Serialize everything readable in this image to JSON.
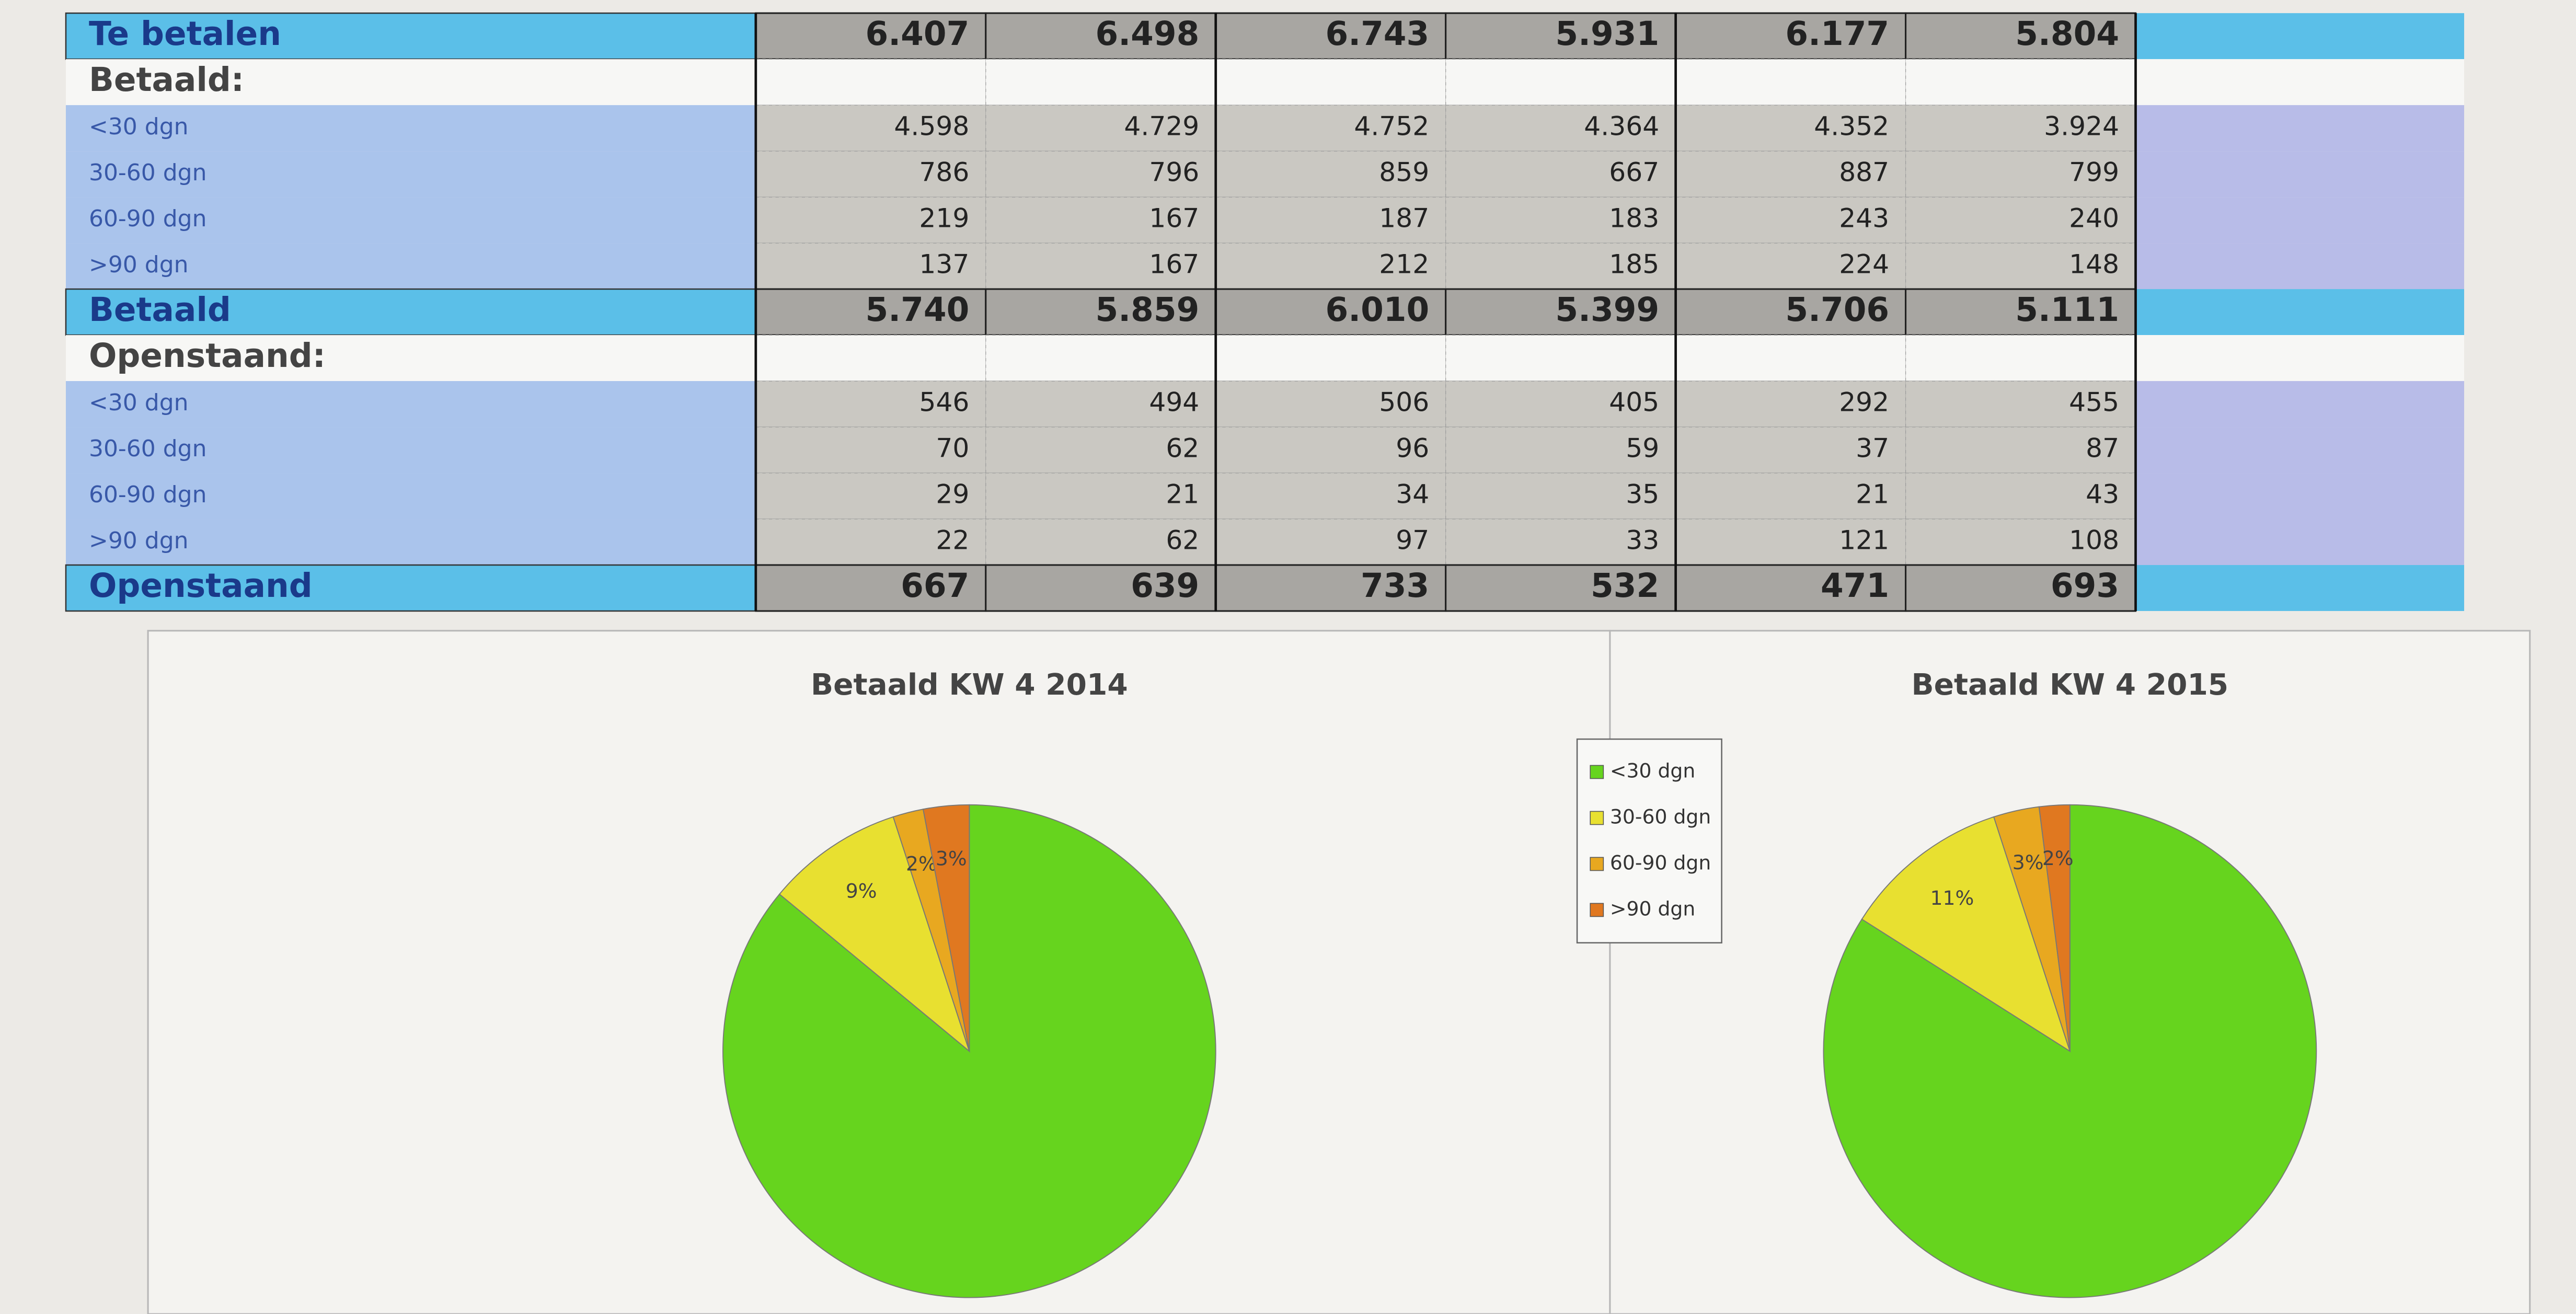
{
  "table": {
    "rows": [
      {
        "label": "Te betalen",
        "total": true,
        "values": [
          "6.407",
          "6.498",
          "6.743",
          "5.931",
          "6.177",
          "5.804"
        ]
      },
      {
        "label": "Betaald:"
      },
      {
        "label": "<30 dgn",
        "values": [
          "4.598",
          "4.729",
          "4.752",
          "4.364",
          "4.352",
          "3.924"
        ]
      },
      {
        "label": "30-60 dgn",
        "values": [
          "786",
          "796",
          "859",
          "667",
          "887",
          "799"
        ]
      },
      {
        "label": "60-90 dgn",
        "values": [
          "219",
          "167",
          "187",
          "183",
          "243",
          "240"
        ]
      },
      {
        "label": ">90 dgn",
        "values": [
          "137",
          "167",
          "212",
          "185",
          "224",
          "148"
        ]
      },
      {
        "label": "Betaald",
        "total": true,
        "values": [
          "5.740",
          "5.859",
          "6.010",
          "5.399",
          "5.706",
          "5.111"
        ]
      },
      {
        "label": "Openstaand:"
      },
      {
        "label": "<30 dgn",
        "values": [
          "546",
          "494",
          "506",
          "405",
          "292",
          "455"
        ]
      },
      {
        "label": "30-60 dgn",
        "values": [
          "70",
          "62",
          "96",
          "59",
          "37",
          "87"
        ]
      },
      {
        "label": "60-90 dgn",
        "values": [
          "29",
          "21",
          "34",
          "35",
          "21",
          "43"
        ]
      },
      {
        "label": ">90 dgn",
        "values": [
          "22",
          "62",
          "97",
          "33",
          "121",
          "108"
        ]
      },
      {
        "label": "Openstaand",
        "total": true,
        "values": [
          "667",
          "639",
          "733",
          "532",
          "471",
          "693"
        ]
      }
    ]
  },
  "chart_data": [
    {
      "type": "pie",
      "title": "Betaald KW 4 2014",
      "categories": [
        "<30 dgn",
        "30-60 dgn",
        "60-90 dgn",
        ">90 dgn"
      ],
      "values": [
        86,
        9,
        2,
        3
      ],
      "value_labels": [
        null,
        "9%",
        "2%",
        "3%"
      ],
      "colors": [
        "#66d41e",
        "#e8e030",
        "#e8a820",
        "#e07820"
      ],
      "legend": "right"
    },
    {
      "type": "pie",
      "title": "Betaald KW 4 2015",
      "categories": [
        "<30 dgn",
        "30-60 dgn",
        "60-90 dgn",
        ">90 dgn"
      ],
      "values": [
        84,
        11,
        3,
        2
      ],
      "value_labels": [
        null,
        "11%",
        "3%",
        "2%"
      ],
      "colors": [
        "#66d41e",
        "#e8e030",
        "#e8a820",
        "#e07820"
      ]
    }
  ]
}
